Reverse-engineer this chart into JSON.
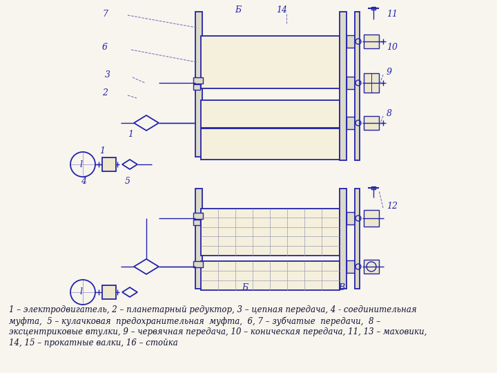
{
  "bg_color": "#f7f5ee",
  "dc": "#2222aa",
  "lc": "#2222aa",
  "legend_lines": [
    "1 – электродвигатель, 2 – планетарный редуктор, 3 – цепная передача, 4 - соединительная",
    "муфта,  5 – кулачковая  предохранительная  муфта,  6, 7 – зубчатые  передачи,  8 –",
    "эксцентриковые втулки, 9 – червячная передача, 10 – коническая передача, 11, 13 – маховики,",
    "14, 15 – прокатные валки, 16 – стойка"
  ],
  "figsize": [
    7.2,
    5.4
  ],
  "dpi": 100
}
